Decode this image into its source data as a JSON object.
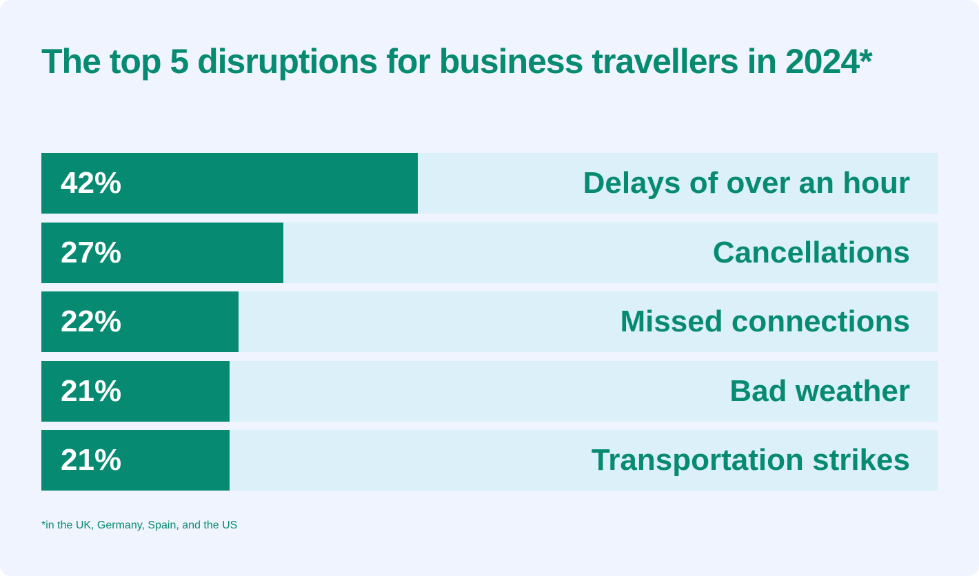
{
  "chart_data": {
    "type": "bar",
    "orientation": "horizontal",
    "title": "The top 5 disruptions for business travellers in 2024*",
    "categories": [
      "Delays of over an hour",
      "Cancellations",
      "Missed connections",
      "Bad weather",
      "Transportation strikes"
    ],
    "values": [
      42,
      27,
      22,
      21,
      21
    ],
    "value_labels": [
      "42%",
      "27%",
      "22%",
      "21%",
      "21%"
    ],
    "xlim": [
      0,
      100
    ],
    "unit": "%",
    "footnote": "*in the UK, Germany, Spain, and the US",
    "colors": {
      "bar": "#078a72",
      "track": "#dbf0f8",
      "background": "#eff4fe"
    }
  }
}
